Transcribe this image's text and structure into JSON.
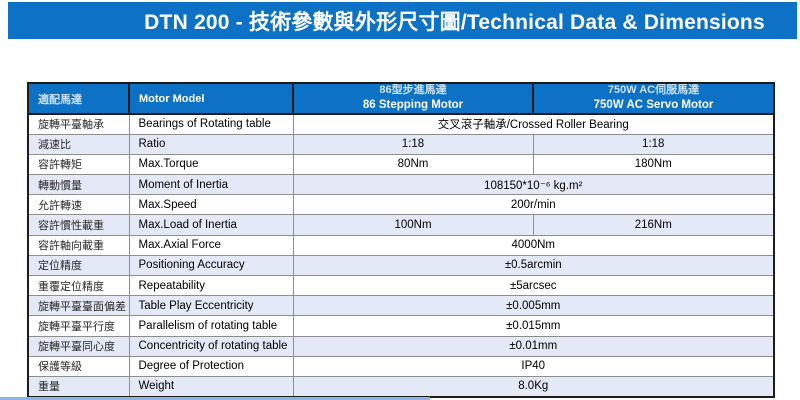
{
  "banner": {
    "title": "DTN 200 - 技術參數與外形尺寸圖/Technical Data & Dimensions"
  },
  "colors": {
    "banner_bg": "#0d72c6",
    "header_bg": "#0d72c6",
    "row_alt": "#e4e9f7",
    "border_dark": "#1c1c1c",
    "border_light": "#8e8e8e",
    "header_zh_text": "#cde1f3"
  },
  "table": {
    "header": {
      "col1_zh": "適配馬達",
      "col1_en": "Motor Model",
      "stepping": {
        "zh": "86型步進馬達",
        "en": "86 Stepping Motor"
      },
      "servo": {
        "zh": "750W AC伺服馬達",
        "en": "750W AC Servo Motor"
      }
    },
    "rows": [
      {
        "zh": "旋轉平臺軸承",
        "en": "Bearings of Rotating table",
        "merged": "交叉滾子軸承/Crossed Roller Bearing"
      },
      {
        "zh": "減速比",
        "en": "Ratio",
        "stepping": "1:18",
        "servo": "1:18"
      },
      {
        "zh": "容許轉矩",
        "en": "Max.Torque",
        "stepping": "80Nm",
        "servo": "180Nm"
      },
      {
        "zh": "轉動慣量",
        "en": "Moment of Inertia",
        "merged": "108150*10⁻⁶ kg.m²"
      },
      {
        "zh": "允許轉速",
        "en": "Max.Speed",
        "merged": "200r/min"
      },
      {
        "zh": "容許慣性載重",
        "en": "Max.Load of Inertia",
        "stepping": "100Nm",
        "servo": "216Nm"
      },
      {
        "zh": "容許軸向載重",
        "en": "Max.Axial Force",
        "merged": "4000Nm"
      },
      {
        "zh": "定位精度",
        "en": "Positioning Accuracy",
        "merged": "±0.5arcmin"
      },
      {
        "zh": "重覆定位精度",
        "en": "Repeatability",
        "merged": "±5arcsec"
      },
      {
        "zh": "旋轉平臺臺面偏差",
        "en": "Table Play Eccentricity",
        "merged": "±0.005mm"
      },
      {
        "zh": "旋轉平臺平行度",
        "en": "Parallelism of rotating table",
        "merged": "±0.015mm"
      },
      {
        "zh": "旋轉平臺同心度",
        "en": "Concentricity of rotating table",
        "merged": "±0.01mm"
      },
      {
        "zh": "保護等級",
        "en": "Degree of Protection",
        "merged": "IP40"
      },
      {
        "zh": "重量",
        "en": "Weight",
        "merged": "8.0Kg"
      }
    ]
  }
}
